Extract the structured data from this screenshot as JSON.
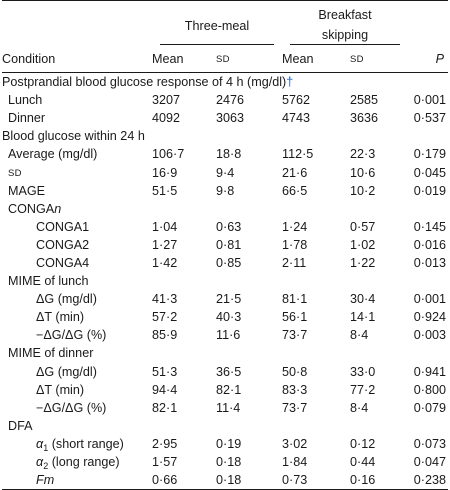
{
  "header": {
    "group1": "Three-meal",
    "group2_line1": "Breakfast",
    "group2_line2": "skipping",
    "condition": "Condition",
    "mean1": "Mean",
    "sd1": "SD",
    "mean2": "Mean",
    "sd2": "SD",
    "p": "P"
  },
  "rows": [
    {
      "type": "section",
      "label": "Postprandial blood glucose response of 4 h (mg/dl)",
      "mark": "†"
    },
    {
      "type": "data",
      "indent": 1,
      "label": "Lunch",
      "m1": "3207",
      "s1": "2476",
      "m2": "5762",
      "s2": "2585",
      "p": "0·001"
    },
    {
      "type": "data",
      "indent": 1,
      "label": "Dinner",
      "m1": "4092",
      "s1": "3063",
      "m2": "4743",
      "s2": "3636",
      "p": "0·537"
    },
    {
      "type": "section",
      "label": "Blood glucose within 24 h"
    },
    {
      "type": "data",
      "indent": 1,
      "label": "Average (mg/dl)",
      "m1": "106·7",
      "s1": "18·8",
      "m2": "112·5",
      "s2": "22·3",
      "p": "0·179"
    },
    {
      "type": "data",
      "indent": 1,
      "label": "SD",
      "small": true,
      "m1": "16·9",
      "s1": "9·4",
      "m2": "21·6",
      "s2": "10·6",
      "p": "0·045"
    },
    {
      "type": "data",
      "indent": 1,
      "label": "MAGE",
      "m1": "51·5",
      "s1": "9·8",
      "m2": "66·5",
      "s2": "10·2",
      "p": "0·019"
    },
    {
      "type": "data",
      "indent": 1,
      "label": "CONGA",
      "label_suffix": "n"
    },
    {
      "type": "data",
      "indent": 2,
      "label": "CONGA1",
      "m1": "1·04",
      "s1": "0·63",
      "m2": "1·24",
      "s2": "0·57",
      "p": "0·145"
    },
    {
      "type": "data",
      "indent": 2,
      "label": "CONGA2",
      "m1": "1·27",
      "s1": "0·81",
      "m2": "1·78",
      "s2": "1·02",
      "p": "0·016"
    },
    {
      "type": "data",
      "indent": 2,
      "label": "CONGA4",
      "m1": "1·42",
      "s1": "0·85",
      "m2": "2·11",
      "s2": "1·22",
      "p": "0·013"
    },
    {
      "type": "data",
      "indent": 1,
      "label": "MIME of lunch"
    },
    {
      "type": "data",
      "indent": 2,
      "label": "ΔG (mg/dl)",
      "m1": "41·3",
      "s1": "21·5",
      "m2": "81·1",
      "s2": "30·4",
      "p": "0·001"
    },
    {
      "type": "data",
      "indent": 2,
      "label": "ΔT (min)",
      "m1": "57·2",
      "s1": "40·3",
      "m2": "56·1",
      "s2": "14·1",
      "p": "0·924"
    },
    {
      "type": "data",
      "indent": 2,
      "label": "−ΔG/ΔG (%)",
      "m1": "85·9",
      "s1": "11·6",
      "m2": "73·7",
      "s2": "8·4",
      "p": "0·003"
    },
    {
      "type": "data",
      "indent": 1,
      "label": "MIME of dinner"
    },
    {
      "type": "data",
      "indent": 2,
      "label": "ΔG (mg/dl)",
      "m1": "51·3",
      "s1": "36·5",
      "m2": "50·8",
      "s2": "33·0",
      "p": "0·941"
    },
    {
      "type": "data",
      "indent": 2,
      "label": "ΔT (min)",
      "m1": "94·4",
      "s1": "82·1",
      "m2": "83·3",
      "s2": "77·2",
      "p": "0·800"
    },
    {
      "type": "data",
      "indent": 2,
      "label": "−ΔG/ΔG (%)",
      "m1": "82·1",
      "s1": "11·4",
      "m2": "73·7",
      "s2": "8·4",
      "p": "0·079"
    },
    {
      "type": "data",
      "indent": 1,
      "label": "DFA"
    },
    {
      "type": "data",
      "indent": 2,
      "label": "α",
      "label_sub": "1",
      "label_tail": " (short range)",
      "italic_head": true,
      "m1": "2·95",
      "s1": "0·19",
      "m2": "3·02",
      "s2": "0·12",
      "p": "0·073"
    },
    {
      "type": "data",
      "indent": 2,
      "label": "α",
      "label_sub": "2",
      "label_tail": " (long range)",
      "italic_head": true,
      "m1": "1·57",
      "s1": "0·18",
      "m2": "1·84",
      "s2": "0·44",
      "p": "0·047"
    },
    {
      "type": "data",
      "indent": 2,
      "label": "Fm",
      "italic": true,
      "m1": "0·66",
      "s1": "0·18",
      "m2": "0·73",
      "s2": "0·16",
      "p": "0·238"
    }
  ]
}
